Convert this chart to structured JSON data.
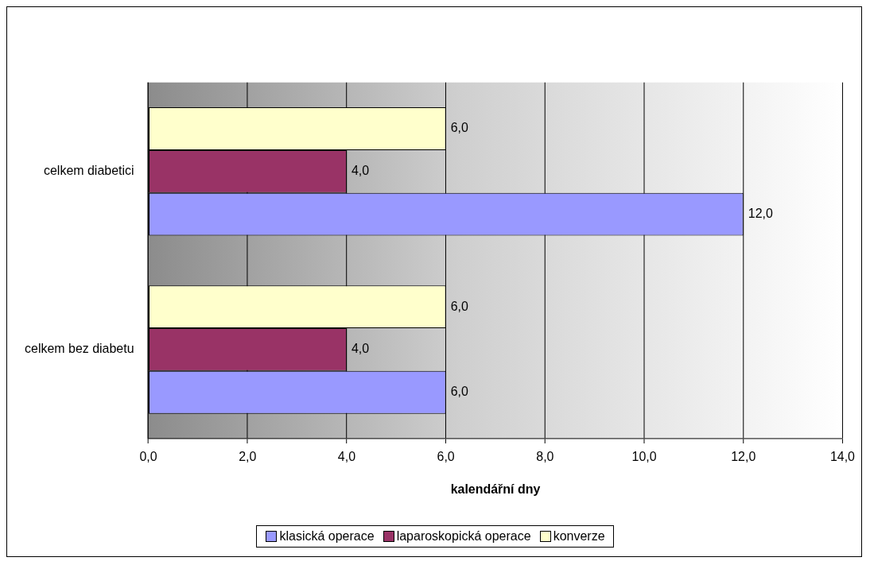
{
  "chart_data": {
    "type": "bar",
    "orientation": "horizontal",
    "categories": [
      "celkem diabetici",
      "celkem bez diabetu"
    ],
    "series": [
      {
        "name": "klasická operace",
        "color": "#9999ff",
        "values": [
          12,
          6
        ],
        "value_labels": [
          "12,0",
          "6,0"
        ]
      },
      {
        "name": "laparoskopická operace",
        "color": "#993366",
        "values": [
          4,
          4
        ],
        "value_labels": [
          "4,0",
          "4,0"
        ]
      },
      {
        "name": "konverze",
        "color": "#ffffcc",
        "values": [
          6,
          6
        ],
        "value_labels": [
          "6,0",
          "6,0"
        ]
      }
    ],
    "xlabel": "kalendářní dny",
    "xlim": [
      0,
      14
    ],
    "xticks": [
      {
        "value": 0,
        "label": "0,0"
      },
      {
        "value": 2,
        "label": "2,0"
      },
      {
        "value": 4,
        "label": "4,0"
      },
      {
        "value": 6,
        "label": "6,0"
      },
      {
        "value": 8,
        "label": "8,0"
      },
      {
        "value": 10,
        "label": "10,0"
      },
      {
        "value": 12,
        "label": "12,0"
      },
      {
        "value": 14,
        "label": "14,0"
      }
    ],
    "grid": "x",
    "legend": "bottom"
  }
}
